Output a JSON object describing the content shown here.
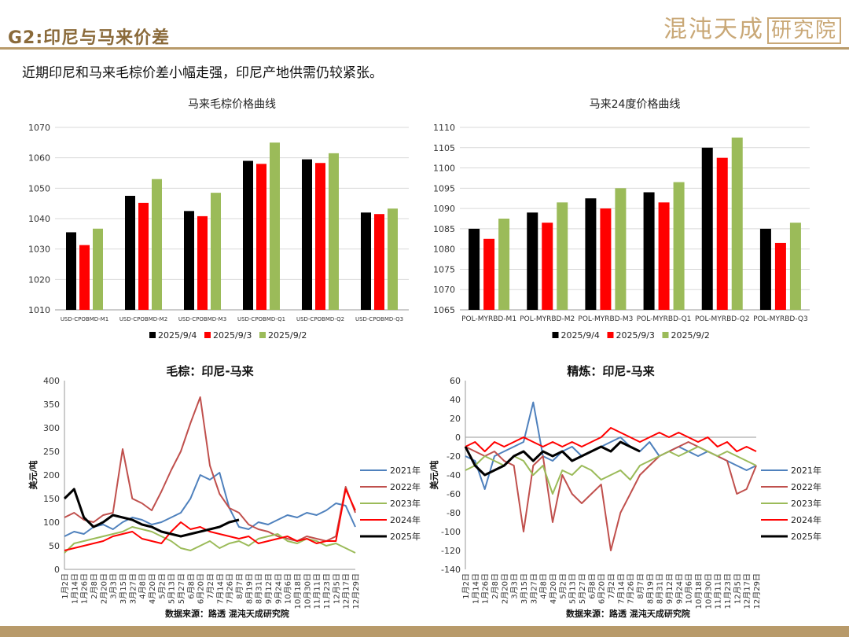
{
  "header": {
    "title": "G2:印尼与马来价差",
    "logo_text": "混沌天成",
    "logo_box_text": "研究院"
  },
  "subtitle": "近期印尼和马来毛棕价差小幅走强，印尼产地供需仍较紧张。",
  "colors": {
    "black": "#000000",
    "red": "#ff0000",
    "green": "#9bbb59",
    "blue": "#4f81bd",
    "darkred": "#c0504d"
  },
  "chart_data": [
    {
      "id": "c1",
      "type": "bar",
      "title": "马来毛棕价格曲线",
      "categories": [
        "USD-CPOBMD-M1",
        "USD-CPOBMD-M2",
        "USD-CPOBMD-M3",
        "USD-CPOBMD-Q1",
        "USD-CPOBMD-Q2",
        "USD-CPOBMD-Q3"
      ],
      "series": [
        {
          "name": "2025/9/4",
          "color": "#000000",
          "values": [
            1035.5,
            1047.5,
            1042.5,
            1059,
            1059.5,
            1042
          ]
        },
        {
          "name": "2025/9/3",
          "color": "#ff0000",
          "values": [
            1031.3,
            1045.2,
            1040.8,
            1058,
            1058.3,
            1041.5
          ]
        },
        {
          "name": "2025/9/2",
          "color": "#9bbb59",
          "values": [
            1036.7,
            1053,
            1048.5,
            1065,
            1061.5,
            1043.3
          ]
        }
      ],
      "ylim": [
        1010,
        1070
      ],
      "yticks": [
        1010,
        1020,
        1030,
        1040,
        1050,
        1060,
        1070
      ],
      "legend_position": "bottom"
    },
    {
      "id": "c2",
      "type": "bar",
      "title": "马来24度价格曲线",
      "categories": [
        "POL-MYRBD-M1",
        "POL-MYRBD-M2",
        "POL-MYRBD-M3",
        "POL-MYRBD-Q1",
        "POL-MYRBD-Q2",
        "POL-MYRBD-Q3"
      ],
      "series": [
        {
          "name": "2025/9/4",
          "color": "#000000",
          "values": [
            1085,
            1089,
            1092.5,
            1094,
            1105,
            1085
          ]
        },
        {
          "name": "2025/9/3",
          "color": "#ff0000",
          "values": [
            1082.5,
            1086.5,
            1090,
            1091.5,
            1102.5,
            1081.5
          ]
        },
        {
          "name": "2025/9/2",
          "color": "#9bbb59",
          "values": [
            1087.5,
            1091.5,
            1095,
            1096.5,
            1107.5,
            1086.5
          ]
        }
      ],
      "ylim": [
        1065,
        1110
      ],
      "yticks": [
        1065,
        1070,
        1075,
        1080,
        1085,
        1090,
        1095,
        1100,
        1105,
        1110
      ],
      "legend_position": "bottom"
    },
    {
      "id": "c3",
      "type": "line",
      "title": "毛棕：印尼-马来",
      "ylabel": "美元/吨",
      "ylim": [
        0,
        400
      ],
      "yticks": [
        0,
        50,
        100,
        150,
        200,
        250,
        300,
        350,
        400
      ],
      "x_labels": [
        "1月2日",
        "1月14日",
        "1月26日",
        "2月8日",
        "2月20日",
        "3月3日",
        "3月15日",
        "3月27日",
        "4月8日",
        "4月20日",
        "5月2日",
        "5月13日",
        "5月27日",
        "6月8日",
        "6月20日",
        "7月2日",
        "7月14日",
        "7月26日",
        "8月7日",
        "8月19日",
        "8月31日",
        "9月12日",
        "9月24日",
        "10月6日",
        "10月18日",
        "10月30日",
        "11月11日",
        "11月23日",
        "12月5日",
        "12月17日",
        "12月29日"
      ],
      "legend_position": "right",
      "source": "数据来源：路透  混沌天成研究院",
      "series": [
        {
          "name": "2021年",
          "color": "#4f81bd",
          "width": 2,
          "values": [
            70,
            80,
            75,
            90,
            95,
            85,
            100,
            110,
            105,
            95,
            100,
            110,
            120,
            150,
            200,
            190,
            205,
            130,
            90,
            85,
            100,
            95,
            105,
            115,
            110,
            120,
            115,
            125,
            140,
            135,
            90
          ]
        },
        {
          "name": "2022年",
          "color": "#c0504d",
          "width": 2,
          "values": [
            110,
            120,
            105,
            100,
            115,
            120,
            255,
            150,
            140,
            125,
            165,
            210,
            250,
            310,
            365,
            220,
            160,
            130,
            120,
            95,
            85,
            80,
            70,
            65,
            60,
            70,
            65,
            60,
            70,
            175,
            120
          ]
        },
        {
          "name": "2023年",
          "color": "#9bbb59",
          "width": 2,
          "values": [
            35,
            55,
            60,
            65,
            70,
            75,
            80,
            90,
            85,
            80,
            70,
            60,
            45,
            40,
            50,
            60,
            45,
            55,
            60,
            50,
            65,
            70,
            75,
            60,
            55,
            65,
            60,
            50,
            55,
            45,
            35
          ]
        },
        {
          "name": "2024年",
          "color": "#ff0000",
          "width": 2,
          "values": [
            40,
            45,
            50,
            55,
            60,
            70,
            75,
            80,
            65,
            60,
            55,
            80,
            100,
            85,
            90,
            80,
            75,
            70,
            65,
            70,
            55,
            60,
            65,
            70,
            60,
            65,
            55,
            60,
            60,
            170,
            125
          ]
        },
        {
          "name": "2025年",
          "color": "#000000",
          "width": 3,
          "values": [
            150,
            170,
            110,
            90,
            100,
            115,
            110,
            105,
            95,
            90,
            80,
            75,
            70,
            75,
            80,
            85,
            90,
            100,
            105
          ]
        }
      ]
    },
    {
      "id": "c4",
      "type": "line",
      "title": "精炼：印尼-马来",
      "ylabel": "美元/吨",
      "ylim": [
        -140,
        60
      ],
      "yticks": [
        -140,
        -120,
        -100,
        -80,
        -60,
        -40,
        -20,
        0,
        20,
        40,
        60
      ],
      "x_labels": [
        "1月2日",
        "1月14日",
        "1月26日",
        "2月8日",
        "2月20日",
        "3月3日",
        "3月15日",
        "3月27日",
        "4月8日",
        "4月20日",
        "5月2日",
        "5月13日",
        "5月27日",
        "6月8日",
        "6月20日",
        "7月2日",
        "7月14日",
        "7月26日",
        "8月7日",
        "8月19日",
        "8月31日",
        "9月12日",
        "9月24日",
        "10月6日",
        "10月18日",
        "10月30日",
        "11月11日",
        "11月23日",
        "12月5日",
        "12月17日",
        "12月29日"
      ],
      "legend_position": "right",
      "source": "数据来源：路透  混沌天成研究院",
      "series": [
        {
          "name": "2021年",
          "color": "#4f81bd",
          "width": 2,
          "values": [
            -20,
            -25,
            -55,
            -20,
            -15,
            -10,
            -5,
            37,
            -20,
            -25,
            -15,
            -10,
            -20,
            -15,
            -10,
            -5,
            0,
            -10,
            -15,
            -5,
            -20,
            -15,
            -10,
            -15,
            -20,
            -15,
            -20,
            -25,
            -30,
            -35,
            -30
          ]
        },
        {
          "name": "2022年",
          "color": "#c0504d",
          "width": 2,
          "values": [
            -10,
            -15,
            -20,
            -15,
            -25,
            -30,
            -100,
            -30,
            -20,
            -90,
            -40,
            -60,
            -70,
            -60,
            -50,
            -120,
            -80,
            -60,
            -40,
            -30,
            -20,
            -15,
            -10,
            -5,
            -10,
            -15,
            -20,
            -25,
            -60,
            -55,
            -30
          ]
        },
        {
          "name": "2023年",
          "color": "#9bbb59",
          "width": 2,
          "values": [
            -35,
            -30,
            -20,
            -25,
            -30,
            -20,
            -25,
            -40,
            -30,
            -60,
            -35,
            -40,
            -30,
            -35,
            -45,
            -40,
            -35,
            -45,
            -30,
            -25,
            -20,
            -15,
            -20,
            -15,
            -10,
            -15,
            -20,
            -15,
            -20,
            -25,
            -30
          ]
        },
        {
          "name": "2024年",
          "color": "#ff0000",
          "width": 2,
          "values": [
            -10,
            -5,
            -15,
            -5,
            -10,
            -5,
            0,
            -5,
            -10,
            -5,
            -10,
            -5,
            -10,
            -5,
            0,
            10,
            5,
            0,
            -5,
            0,
            5,
            0,
            5,
            0,
            -5,
            0,
            -10,
            -5,
            -15,
            -10,
            -15
          ]
        },
        {
          "name": "2025年",
          "color": "#000000",
          "width": 3,
          "values": [
            -10,
            -30,
            -40,
            -35,
            -30,
            -20,
            -15,
            -25,
            -15,
            -20,
            -15,
            -25,
            -20,
            -15,
            -10,
            -15,
            -5,
            -10,
            -15
          ]
        }
      ]
    }
  ]
}
